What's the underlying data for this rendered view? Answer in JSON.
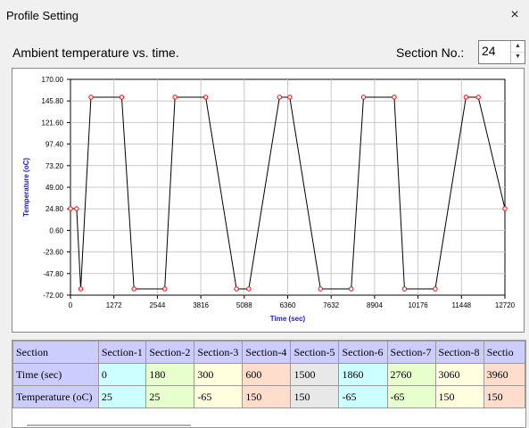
{
  "window": {
    "title": "Profile Setting",
    "close_glyph": "×"
  },
  "header": {
    "subtitle": "Ambient temperature vs. time.",
    "section_label": "Section No.:",
    "section_value": "24",
    "up_glyph": "▲",
    "down_glyph": "▼"
  },
  "chart_data": {
    "type": "line",
    "xlabel": "Time (sec)",
    "ylabel": "Temperature (oC)",
    "xlim": [
      0,
      12720
    ],
    "ylim": [
      -72,
      170
    ],
    "x_ticks": [
      "0",
      "1272",
      "2544",
      "3816",
      "5088",
      "6360",
      "7632",
      "8904",
      "10176",
      "11448",
      "12720"
    ],
    "y_ticks": [
      "170.00",
      "145.80",
      "121.60",
      "97.40",
      "73.20",
      "49.00",
      "24.80",
      "0.60",
      "-23.60",
      "-47.80",
      "-72.00"
    ],
    "grid": true,
    "line_color": "#000000",
    "marker_color": "#ff0000",
    "x": [
      0,
      180,
      300,
      600,
      1500,
      1860,
      2760,
      3060,
      3960,
      4860,
      5220,
      6120,
      6420,
      7320,
      8220,
      8580,
      9480,
      9780,
      10680,
      11580,
      11940,
      12720
    ],
    "y": [
      25,
      25,
      -65,
      150,
      150,
      -65,
      -65,
      150,
      150,
      -65,
      -65,
      150,
      150,
      -65,
      -65,
      150,
      150,
      -65,
      -65,
      150,
      150,
      25
    ]
  },
  "table": {
    "headers": [
      "Section",
      "Section-1",
      "Section-2",
      "Section-3",
      "Section-4",
      "Section-5",
      "Section-6",
      "Section-7",
      "Section-8",
      "Sectio"
    ],
    "rows": [
      {
        "label": "Time (sec)",
        "cells": [
          "0",
          "180",
          "300",
          "600",
          "1500",
          "1860",
          "2760",
          "3060",
          "3960"
        ]
      },
      {
        "label": "Temperature (oC)",
        "cells": [
          "25",
          "25",
          "-65",
          "150",
          "150",
          "-65",
          "-65",
          "150",
          "150"
        ]
      }
    ]
  }
}
